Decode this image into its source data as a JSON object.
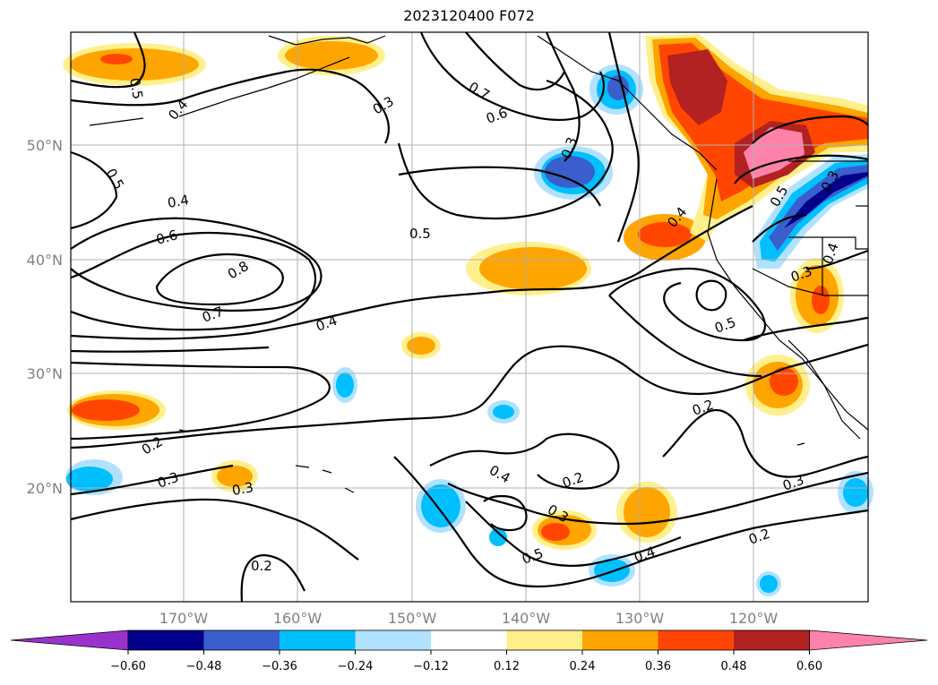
{
  "title": "2023120400 F072",
  "map": {
    "lat_labels": [
      "50°N",
      "40°N",
      "30°N",
      "20°N"
    ],
    "lon_labels": [
      "170°W",
      "160°W",
      "150°W",
      "140°W",
      "130°W",
      "120°W"
    ],
    "contour_labels": [
      "0.5",
      "0.4",
      "0.3",
      "0.7",
      "0.6",
      "0.3",
      "0.5",
      "0.4",
      "0.6",
      "0.5",
      "0.8",
      "0.7",
      "0.4",
      "0.4",
      "0.5",
      "0.3",
      "0.4",
      "0.3",
      "0.5",
      "0.2",
      "0.2",
      "0.3",
      "0.3",
      "0.2",
      "0.4",
      "0.2",
      "0.3",
      "0.5",
      "0.4",
      "0.2",
      "0.3"
    ]
  },
  "colorbar": {
    "ticks": [
      "−0.60",
      "−0.48",
      "−0.36",
      "−0.24",
      "−0.12",
      "0.12",
      "0.24",
      "0.36",
      "0.48",
      "0.60"
    ],
    "colors": [
      "#9932cc",
      "#00008b",
      "#3a5fcd",
      "#00bfff",
      "#b0e2ff",
      "#ffffff",
      "#fff08c",
      "#ffa500",
      "#ff4500",
      "#b22222",
      "#ff82ab"
    ]
  }
}
